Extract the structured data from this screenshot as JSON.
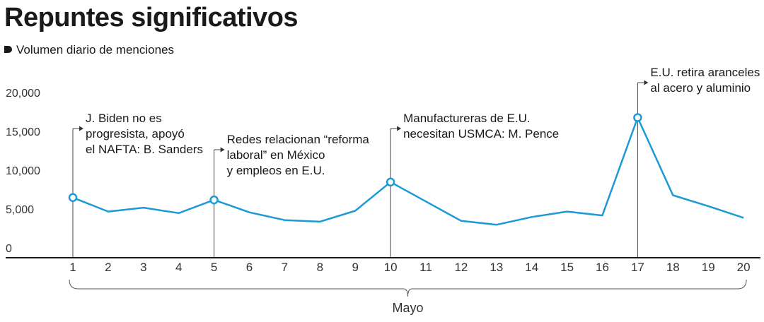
{
  "header": {
    "title": "Repuntes significativos",
    "subtitle": "Volumen diario de menciones"
  },
  "chart_data": {
    "type": "line",
    "title": "Repuntes significativos",
    "subtitle": "Volumen diario de menciones",
    "xlabel": "Mayo",
    "ylabel": "",
    "x": [
      1,
      2,
      3,
      4,
      5,
      6,
      7,
      8,
      9,
      10,
      11,
      12,
      13,
      14,
      15,
      16,
      17,
      18,
      19,
      20
    ],
    "values": [
      7200,
      5400,
      5900,
      5200,
      6900,
      5300,
      4300,
      4100,
      5500,
      9200,
      6700,
      4200,
      3700,
      4700,
      5400,
      4900,
      17500,
      7500,
      6100,
      4600
    ],
    "ylim": [
      0,
      20000
    ],
    "yticks": [
      "20,000",
      "15,000",
      "10,000",
      "5,000",
      "0"
    ],
    "ytick_values": [
      20000,
      15000,
      10000,
      5000,
      0
    ],
    "xticks": [
      "1",
      "2",
      "3",
      "4",
      "5",
      "6",
      "7",
      "8",
      "9",
      "10",
      "11",
      "12",
      "13",
      "14",
      "15",
      "16",
      "17",
      "18",
      "19",
      "20"
    ],
    "grid": false,
    "line_color": "#1b9ad6",
    "annotations": [
      {
        "x": 1,
        "lines": [
          "J. Biden no es",
          "progresista, apoyó",
          "el NAFTA: B. Sanders"
        ]
      },
      {
        "x": 5,
        "lines": [
          "Redes relacionan “reforma",
          "laboral” en México",
          "y empleos en E.U."
        ]
      },
      {
        "x": 10,
        "lines": [
          "Manufactureras de E.U.",
          "necesitan USMCA: M. Pence"
        ]
      },
      {
        "x": 17,
        "lines": [
          "E.U. retira aranceles",
          "al acero y aluminio"
        ]
      }
    ]
  }
}
